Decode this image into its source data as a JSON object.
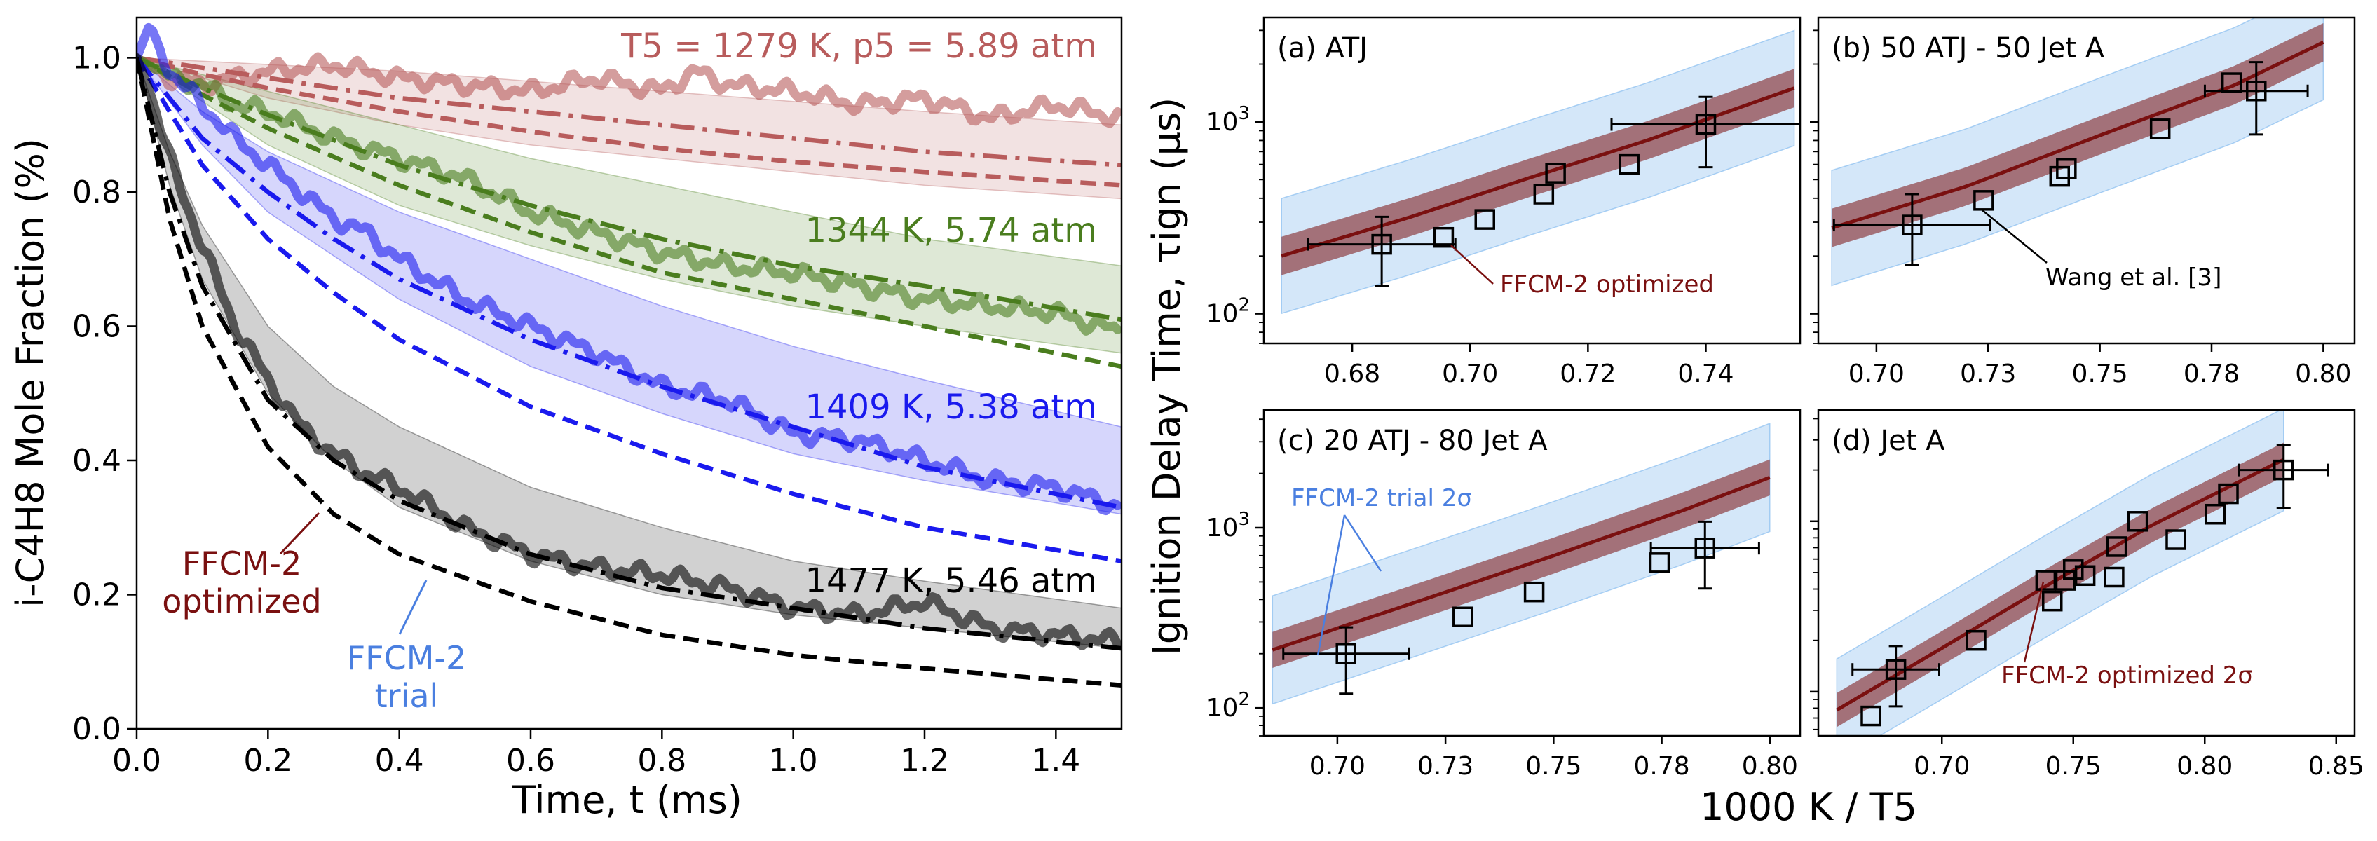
{
  "figure": {
    "shared_xlabel_right": "1000 K / T5",
    "shared_ylabel_right": "Ignition Delay Time, τign (μs)"
  },
  "chart_data": [
    {
      "id": "left",
      "type": "line",
      "xlabel": "Time, t (ms)",
      "ylabel": "i-C4H8 Mole Fraction (%)",
      "xlim": [
        0,
        1.5
      ],
      "ylim": [
        0,
        1.06
      ],
      "xticks": [
        0.0,
        0.2,
        0.4,
        0.6,
        0.8,
        1.0,
        1.2,
        1.4
      ],
      "yticks": [
        0.0,
        0.2,
        0.4,
        0.6,
        0.8,
        1.0
      ],
      "grid": false,
      "series": [
        {
          "label": "T5 = 1279 K, p5 = 5.89 atm",
          "color": "#b85c5c",
          "measured": {
            "x": [
              0,
              0.05,
              0.1,
              0.15,
              0.2,
              0.3,
              0.4,
              0.5,
              0.6,
              0.7,
              0.8,
              0.85,
              0.9,
              1.0,
              1.1,
              1.2,
              1.3,
              1.4,
              1.5
            ],
            "y": [
              1.0,
              0.97,
              0.96,
              0.97,
              0.98,
              0.99,
              0.97,
              0.96,
              0.95,
              0.97,
              0.95,
              0.98,
              0.96,
              0.95,
              0.93,
              0.94,
              0.91,
              0.93,
              0.91
            ]
          },
          "trial": {
            "x": [
              0,
              0.1,
              0.2,
              0.4,
              0.6,
              0.8,
              1.0,
              1.2,
              1.5
            ],
            "y": [
              1.0,
              0.985,
              0.97,
              0.94,
              0.92,
              0.9,
              0.88,
              0.86,
              0.84
            ]
          },
          "optimized": {
            "x": [
              0,
              0.1,
              0.2,
              0.4,
              0.6,
              0.8,
              1.0,
              1.2,
              1.5
            ],
            "y": [
              1.0,
              0.975,
              0.955,
              0.92,
              0.89,
              0.865,
              0.845,
              0.83,
              0.81
            ]
          },
          "band": {
            "x": [
              0,
              0.2,
              0.4,
              0.6,
              0.8,
              1.0,
              1.2,
              1.5
            ],
            "lower": [
              1.0,
              0.94,
              0.9,
              0.87,
              0.85,
              0.83,
              0.81,
              0.79
            ],
            "upper": [
              1.0,
              0.99,
              0.98,
              0.965,
              0.95,
              0.935,
              0.92,
              0.9
            ]
          }
        },
        {
          "label": "1344 K, 5.74 atm",
          "color": "#4a7d1e",
          "measured": {
            "x": [
              0,
              0.05,
              0.1,
              0.15,
              0.2,
              0.3,
              0.4,
              0.5,
              0.6,
              0.7,
              0.8,
              0.9,
              1.0,
              1.1,
              1.2,
              1.3,
              1.4,
              1.5
            ],
            "y": [
              1.0,
              0.97,
              0.96,
              0.93,
              0.92,
              0.88,
              0.85,
              0.82,
              0.77,
              0.74,
              0.71,
              0.69,
              0.68,
              0.66,
              0.64,
              0.63,
              0.62,
              0.59
            ]
          },
          "trial": {
            "x": [
              0,
              0.1,
              0.2,
              0.4,
              0.6,
              0.8,
              1.0,
              1.2,
              1.5
            ],
            "y": [
              1.0,
              0.955,
              0.915,
              0.84,
              0.78,
              0.73,
              0.69,
              0.66,
              0.61
            ]
          },
          "optimized": {
            "x": [
              0,
              0.1,
              0.2,
              0.4,
              0.6,
              0.8,
              1.0,
              1.2,
              1.5
            ],
            "y": [
              1.0,
              0.945,
              0.895,
              0.81,
              0.74,
              0.68,
              0.64,
              0.6,
              0.54
            ]
          },
          "band": {
            "x": [
              0,
              0.2,
              0.4,
              0.6,
              0.8,
              1.0,
              1.2,
              1.5
            ],
            "lower": [
              1.0,
              0.87,
              0.78,
              0.72,
              0.67,
              0.63,
              0.6,
              0.56
            ],
            "upper": [
              1.0,
              0.95,
              0.9,
              0.85,
              0.81,
              0.77,
              0.73,
              0.69
            ]
          }
        },
        {
          "label": "1409 K, 5.38 atm",
          "color": "#1a1aee",
          "measured": {
            "x": [
              0,
              0.02,
              0.05,
              0.1,
              0.15,
              0.2,
              0.25,
              0.3,
              0.35,
              0.4,
              0.5,
              0.6,
              0.7,
              0.8,
              0.9,
              1.0,
              1.1,
              1.2,
              1.3,
              1.4,
              1.5
            ],
            "y": [
              1.0,
              1.05,
              0.98,
              0.93,
              0.88,
              0.84,
              0.8,
              0.76,
              0.74,
              0.7,
              0.64,
              0.6,
              0.56,
              0.51,
              0.49,
              0.44,
              0.43,
              0.4,
              0.37,
              0.36,
              0.33
            ]
          },
          "trial": {
            "x": [
              0,
              0.1,
              0.2,
              0.3,
              0.4,
              0.6,
              0.8,
              1.0,
              1.2,
              1.5
            ],
            "y": [
              1.0,
              0.88,
              0.8,
              0.73,
              0.67,
              0.58,
              0.51,
              0.45,
              0.39,
              0.33
            ]
          },
          "optimized": {
            "x": [
              0,
              0.1,
              0.2,
              0.3,
              0.4,
              0.6,
              0.8,
              1.0,
              1.2,
              1.5
            ],
            "y": [
              1.0,
              0.84,
              0.73,
              0.65,
              0.58,
              0.48,
              0.41,
              0.35,
              0.3,
              0.25
            ]
          },
          "band": {
            "x": [
              0,
              0.1,
              0.2,
              0.4,
              0.6,
              0.8,
              1.0,
              1.2,
              1.5
            ],
            "lower": [
              1.0,
              0.87,
              0.77,
              0.64,
              0.54,
              0.47,
              0.41,
              0.37,
              0.32
            ],
            "upper": [
              1.0,
              0.92,
              0.86,
              0.77,
              0.7,
              0.63,
              0.57,
              0.52,
              0.45
            ]
          }
        },
        {
          "label": "1477 K, 5.46 atm",
          "color": "#000000",
          "measured": {
            "x": [
              0,
              0.02,
              0.05,
              0.1,
              0.15,
              0.2,
              0.25,
              0.3,
              0.35,
              0.4,
              0.5,
              0.6,
              0.7,
              0.8,
              0.9,
              1.0,
              1.1,
              1.2,
              1.3,
              1.4,
              1.5
            ],
            "y": [
              1.0,
              0.95,
              0.85,
              0.72,
              0.6,
              0.52,
              0.45,
              0.41,
              0.38,
              0.36,
              0.3,
              0.26,
              0.24,
              0.23,
              0.21,
              0.18,
              0.17,
              0.19,
              0.15,
              0.14,
              0.13
            ]
          },
          "trial": {
            "x": [
              0,
              0.05,
              0.1,
              0.2,
              0.3,
              0.4,
              0.6,
              0.8,
              1.0,
              1.2,
              1.5
            ],
            "y": [
              1.0,
              0.8,
              0.66,
              0.49,
              0.4,
              0.34,
              0.26,
              0.21,
              0.18,
              0.15,
              0.12
            ]
          },
          "optimized": {
            "x": [
              0,
              0.05,
              0.1,
              0.2,
              0.3,
              0.4,
              0.6,
              0.8,
              1.0,
              1.2,
              1.5
            ],
            "y": [
              1.0,
              0.76,
              0.6,
              0.42,
              0.32,
              0.26,
              0.19,
              0.14,
              0.11,
              0.09,
              0.065
            ]
          },
          "band": {
            "x": [
              0,
              0.05,
              0.1,
              0.2,
              0.3,
              0.4,
              0.6,
              0.8,
              1.0,
              1.2,
              1.5
            ],
            "lower": [
              1.0,
              0.81,
              0.67,
              0.5,
              0.4,
              0.33,
              0.25,
              0.2,
              0.17,
              0.15,
              0.12
            ],
            "upper": [
              1.0,
              0.86,
              0.75,
              0.6,
              0.51,
              0.45,
              0.36,
              0.3,
              0.25,
              0.22,
              0.18
            ]
          }
        }
      ],
      "annotations": [
        {
          "text": "FFCM-2 optimized",
          "color": "#7a1010"
        },
        {
          "text": "FFCM-2 trial",
          "color": "#4a7fe0"
        }
      ]
    },
    {
      "id": "a",
      "type": "scatter",
      "title": "(a) ATJ",
      "yscale": "log",
      "xlim": [
        0.665,
        0.756
      ],
      "ylim": [
        70,
        3500
      ],
      "xticks": [
        0.68,
        0.7,
        0.72,
        0.74
      ],
      "xtick_labels": [
        "0.68",
        "0.70",
        "0.72",
        "0.74"
      ],
      "yticks": [
        100,
        1000
      ],
      "points": {
        "x": [
          0.685,
          0.6955,
          0.7025,
          0.7125,
          0.7145,
          0.727,
          0.74
        ],
        "y": [
          230,
          250,
          310,
          420,
          540,
          600,
          970
        ]
      },
      "errorbars": [
        {
          "x": 0.685,
          "y": 230,
          "xerr": 0.0125,
          "ylo": 140,
          "yhi": 320
        },
        {
          "x": 0.74,
          "y": 970,
          "xerr": 0.016,
          "ylo": 580,
          "yhi": 1350
        }
      ],
      "model": {
        "x": [
          0.668,
          0.69,
          0.71,
          0.73,
          0.755
        ],
        "y": [
          200,
          320,
          510,
          800,
          1500
        ]
      },
      "annotation": {
        "text": "FFCM-2 optimized",
        "color": "#7a1010"
      }
    },
    {
      "id": "b",
      "type": "scatter",
      "title": "(b) 50 ATJ - 50 Jet A",
      "yscale": "log",
      "xlim": [
        0.687,
        0.807
      ],
      "ylim": [
        70,
        3500
      ],
      "xticks": [
        0.7,
        0.725,
        0.75,
        0.775,
        0.8
      ],
      "xtick_labels": [
        "0.70",
        "0.73",
        "0.75",
        "0.78",
        "0.80"
      ],
      "yticks": [
        100,
        1000
      ],
      "points": {
        "x": [
          0.708,
          0.724,
          0.741,
          0.7425,
          0.7635,
          0.7795,
          0.785
        ],
        "y": [
          290,
          390,
          520,
          570,
          920,
          1600,
          1450
        ]
      },
      "errorbars": [
        {
          "x": 0.708,
          "y": 290,
          "xerr": 0.0175,
          "ylo": 180,
          "yhi": 420
        },
        {
          "x": 0.785,
          "y": 1450,
          "xerr": 0.0115,
          "ylo": 860,
          "yhi": 2050
        }
      ],
      "model": {
        "x": [
          0.69,
          0.72,
          0.75,
          0.78,
          0.8
        ],
        "y": [
          280,
          460,
          850,
          1550,
          2600
        ]
      },
      "annotation": {
        "text": "Wang et al. [3]",
        "color": "#000000"
      }
    },
    {
      "id": "c",
      "type": "scatter",
      "title": "(c) 20 ATJ - 80 Jet A",
      "yscale": "log",
      "xlim": [
        0.683,
        0.807
      ],
      "ylim": [
        70,
        4500
      ],
      "xticks": [
        0.7,
        0.725,
        0.75,
        0.775,
        0.8
      ],
      "xtick_labels": [
        "0.70",
        "0.73",
        "0.75",
        "0.78",
        "0.80"
      ],
      "yticks": [
        100,
        1000
      ],
      "points": {
        "x": [
          0.702,
          0.729,
          0.7455,
          0.7745,
          0.785
        ],
        "y": [
          200,
          320,
          440,
          640,
          770
        ]
      },
      "errorbars": [
        {
          "x": 0.702,
          "y": 200,
          "xerr": 0.0145,
          "ylo": 120,
          "yhi": 280
        },
        {
          "x": 0.785,
          "y": 770,
          "xerr": 0.0125,
          "ylo": 460,
          "yhi": 1080
        }
      ],
      "model": {
        "x": [
          0.685,
          0.72,
          0.75,
          0.78,
          0.8
        ],
        "y": [
          210,
          400,
          700,
          1250,
          1900
        ]
      },
      "annotation": {
        "text": "FFCM-2 trial 2σ",
        "color": "#4a7fe0"
      }
    },
    {
      "id": "d",
      "type": "scatter",
      "title": "(d) Jet A",
      "yscale": "log",
      "xlim": [
        0.653,
        0.857
      ],
      "ylim": [
        55,
        4500
      ],
      "xticks": [
        0.7,
        0.75,
        0.8,
        0.85
      ],
      "xtick_labels": [
        "0.70",
        "0.75",
        "0.80",
        "0.85"
      ],
      "yticks": [
        100,
        1000
      ],
      "points": {
        "x": [
          0.673,
          0.6825,
          0.713,
          0.7395,
          0.742,
          0.747,
          0.75,
          0.7545,
          0.7655,
          0.7665,
          0.7745,
          0.789,
          0.804,
          0.809,
          0.83
        ],
        "y": [
          72,
          135,
          200,
          450,
          340,
          450,
          520,
          480,
          470,
          710,
          1000,
          780,
          1100,
          1450,
          2000
        ]
      },
      "errorbars": [
        {
          "x": 0.6825,
          "y": 135,
          "xerr": 0.0165,
          "ylo": 82,
          "yhi": 185
        },
        {
          "x": 0.83,
          "y": 2000,
          "xerr": 0.017,
          "ylo": 1200,
          "yhi": 2800
        }
      ],
      "model": {
        "x": [
          0.66,
          0.7,
          0.74,
          0.78,
          0.83
        ],
        "y": [
          78,
          180,
          420,
          950,
          2300
        ]
      },
      "annotation": {
        "text": "FFCM-2 optimized 2σ",
        "color": "#7a1010"
      }
    }
  ]
}
